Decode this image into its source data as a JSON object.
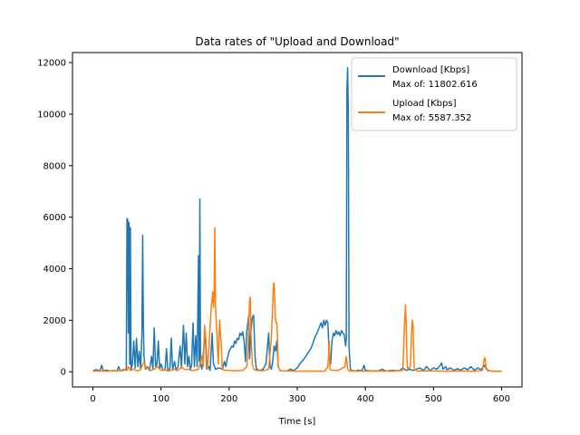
{
  "chart_data": {
    "type": "line",
    "title": "Data rates of \"Upload and Download\"",
    "xlabel": "Time [s]",
    "ylabel": "",
    "xlim": [
      -30,
      630
    ],
    "ylim": [
      -590,
      12390
    ],
    "xticks": [
      0,
      100,
      200,
      300,
      400,
      500,
      600
    ],
    "yticks": [
      0,
      2000,
      4000,
      6000,
      8000,
      10000,
      12000
    ],
    "legend_position": "top-right",
    "grid": false,
    "series": [
      {
        "name": "Download [Kbps]",
        "max_label": "Max of: 11802.616",
        "color": "#1f77b4",
        "points": [
          [
            0,
            50
          ],
          [
            5,
            80
          ],
          [
            10,
            30
          ],
          [
            13,
            250
          ],
          [
            15,
            40
          ],
          [
            20,
            60
          ],
          [
            25,
            30
          ],
          [
            30,
            50
          ],
          [
            35,
            30
          ],
          [
            38,
            200
          ],
          [
            40,
            40
          ],
          [
            45,
            60
          ],
          [
            49,
            100
          ],
          [
            50,
            5950
          ],
          [
            51,
            5900
          ],
          [
            52,
            1500
          ],
          [
            53,
            5800
          ],
          [
            54,
            300
          ],
          [
            55,
            5600
          ],
          [
            56,
            100
          ],
          [
            58,
            300
          ],
          [
            60,
            1200
          ],
          [
            62,
            150
          ],
          [
            64,
            1300
          ],
          [
            66,
            200
          ],
          [
            68,
            800
          ],
          [
            70,
            100
          ],
          [
            72,
            1500
          ],
          [
            73,
            5300
          ],
          [
            74,
            2000
          ],
          [
            75,
            600
          ],
          [
            77,
            100
          ],
          [
            80,
            200
          ],
          [
            83,
            50
          ],
          [
            86,
            600
          ],
          [
            88,
            100
          ],
          [
            90,
            1700
          ],
          [
            92,
            200
          ],
          [
            94,
            300
          ],
          [
            96,
            1200
          ],
          [
            98,
            100
          ],
          [
            100,
            300
          ],
          [
            103,
            50
          ],
          [
            106,
            100
          ],
          [
            108,
            900
          ],
          [
            110,
            50
          ],
          [
            113,
            100
          ],
          [
            115,
            1300
          ],
          [
            117,
            100
          ],
          [
            120,
            400
          ],
          [
            122,
            50
          ],
          [
            125,
            200
          ],
          [
            128,
            1000
          ],
          [
            130,
            150
          ],
          [
            133,
            1800
          ],
          [
            135,
            300
          ],
          [
            137,
            1500
          ],
          [
            139,
            200
          ],
          [
            141,
            600
          ],
          [
            143,
            50
          ],
          [
            145,
            300
          ],
          [
            147,
            1900
          ],
          [
            149,
            200
          ],
          [
            151,
            1400
          ],
          [
            153,
            200
          ],
          [
            155,
            4500
          ],
          [
            156,
            400
          ],
          [
            157,
            6700
          ],
          [
            158,
            300
          ],
          [
            160,
            100
          ],
          [
            163,
            1000
          ],
          [
            165,
            1500
          ],
          [
            167,
            100
          ],
          [
            170,
            200
          ],
          [
            172,
            50
          ],
          [
            175,
            1500
          ],
          [
            177,
            300
          ],
          [
            180,
            100
          ],
          [
            185,
            150
          ],
          [
            190,
            100
          ],
          [
            193,
            400
          ],
          [
            195,
            200
          ],
          [
            198,
            600
          ],
          [
            200,
            800
          ],
          [
            202,
            900
          ],
          [
            204,
            1000
          ],
          [
            206,
            950
          ],
          [
            208,
            1200
          ],
          [
            210,
            1100
          ],
          [
            212,
            1300
          ],
          [
            214,
            1250
          ],
          [
            216,
            1500
          ],
          [
            218,
            1400
          ],
          [
            220,
            1550
          ],
          [
            222,
            1200
          ],
          [
            224,
            400
          ],
          [
            226,
            1600
          ],
          [
            228,
            2000
          ],
          [
            229,
            2200
          ],
          [
            230,
            500
          ],
          [
            232,
            1600
          ],
          [
            234,
            2100
          ],
          [
            236,
            2200
          ],
          [
            238,
            600
          ],
          [
            240,
            100
          ],
          [
            245,
            50
          ],
          [
            250,
            100
          ],
          [
            254,
            300
          ],
          [
            256,
            900
          ],
          [
            258,
            1500
          ],
          [
            260,
            200
          ],
          [
            262,
            100
          ],
          [
            264,
            400
          ],
          [
            266,
            1000
          ],
          [
            268,
            800
          ],
          [
            270,
            1200
          ],
          [
            272,
            200
          ],
          [
            275,
            50
          ],
          [
            280,
            30
          ],
          [
            285,
            30
          ],
          [
            290,
            100
          ],
          [
            295,
            50
          ],
          [
            300,
            150
          ],
          [
            305,
            350
          ],
          [
            310,
            500
          ],
          [
            315,
            700
          ],
          [
            320,
            900
          ],
          [
            323,
            1100
          ],
          [
            326,
            1350
          ],
          [
            329,
            1500
          ],
          [
            332,
            1700
          ],
          [
            335,
            1900
          ],
          [
            337,
            1700
          ],
          [
            339,
            2000
          ],
          [
            341,
            1800
          ],
          [
            343,
            2000
          ],
          [
            345,
            1900
          ],
          [
            347,
            600
          ],
          [
            349,
            300
          ],
          [
            351,
            1200
          ],
          [
            353,
            1500
          ],
          [
            355,
            1400
          ],
          [
            357,
            1600
          ],
          [
            359,
            1450
          ],
          [
            361,
            1550
          ],
          [
            363,
            1400
          ],
          [
            365,
            1600
          ],
          [
            367,
            1500
          ],
          [
            369,
            1450
          ],
          [
            371,
            1000
          ],
          [
            372,
            1300
          ],
          [
            373,
            11000
          ],
          [
            374,
            11802.616
          ],
          [
            375,
            10000
          ],
          [
            376,
            1000
          ],
          [
            378,
            100
          ],
          [
            380,
            50
          ],
          [
            385,
            30
          ],
          [
            390,
            60
          ],
          [
            395,
            40
          ],
          [
            398,
            250
          ],
          [
            400,
            50
          ],
          [
            410,
            30
          ],
          [
            420,
            40
          ],
          [
            425,
            100
          ],
          [
            430,
            30
          ],
          [
            440,
            50
          ],
          [
            450,
            40
          ],
          [
            455,
            150
          ],
          [
            460,
            50
          ],
          [
            465,
            100
          ],
          [
            470,
            50
          ],
          [
            480,
            150
          ],
          [
            485,
            50
          ],
          [
            490,
            200
          ],
          [
            495,
            50
          ],
          [
            500,
            150
          ],
          [
            505,
            100
          ],
          [
            510,
            250
          ],
          [
            512,
            350
          ],
          [
            514,
            100
          ],
          [
            518,
            200
          ],
          [
            520,
            80
          ],
          [
            525,
            150
          ],
          [
            530,
            50
          ],
          [
            535,
            120
          ],
          [
            540,
            60
          ],
          [
            545,
            150
          ],
          [
            550,
            80
          ],
          [
            555,
            200
          ],
          [
            560,
            60
          ],
          [
            565,
            150
          ],
          [
            570,
            80
          ],
          [
            575,
            250
          ],
          [
            578,
            100
          ],
          [
            580,
            40
          ],
          [
            585,
            30
          ],
          [
            590,
            20
          ],
          [
            600,
            20
          ]
        ]
      },
      {
        "name": "Upload [Kbps]",
        "max_label": "Max of: 5587.352",
        "color": "#ff7f0e",
        "points": [
          [
            0,
            20
          ],
          [
            10,
            30
          ],
          [
            20,
            20
          ],
          [
            30,
            40
          ],
          [
            40,
            30
          ],
          [
            45,
            100
          ],
          [
            50,
            50
          ],
          [
            52,
            200
          ],
          [
            55,
            50
          ],
          [
            60,
            100
          ],
          [
            65,
            30
          ],
          [
            70,
            80
          ],
          [
            75,
            400
          ],
          [
            78,
            100
          ],
          [
            80,
            150
          ],
          [
            85,
            50
          ],
          [
            90,
            100
          ],
          [
            95,
            200
          ],
          [
            100,
            50
          ],
          [
            105,
            80
          ],
          [
            110,
            30
          ],
          [
            115,
            50
          ],
          [
            120,
            100
          ],
          [
            125,
            50
          ],
          [
            130,
            200
          ],
          [
            135,
            80
          ],
          [
            140,
            100
          ],
          [
            145,
            50
          ],
          [
            150,
            60
          ],
          [
            155,
            100
          ],
          [
            160,
            600
          ],
          [
            162,
            200
          ],
          [
            164,
            1800
          ],
          [
            166,
            1200
          ],
          [
            168,
            100
          ],
          [
            170,
            700
          ],
          [
            172,
            1800
          ],
          [
            174,
            2600
          ],
          [
            176,
            3100
          ],
          [
            177,
            2500
          ],
          [
            178,
            3000
          ],
          [
            179,
            5587.352
          ],
          [
            180,
            2500
          ],
          [
            182,
            1500
          ],
          [
            184,
            300
          ],
          [
            186,
            2000
          ],
          [
            188,
            1200
          ],
          [
            190,
            100
          ],
          [
            195,
            50
          ],
          [
            200,
            50
          ],
          [
            210,
            40
          ],
          [
            220,
            50
          ],
          [
            226,
            200
          ],
          [
            228,
            1000
          ],
          [
            230,
            2800
          ],
          [
            231,
            2900
          ],
          [
            232,
            1500
          ],
          [
            234,
            300
          ],
          [
            236,
            100
          ],
          [
            240,
            50
          ],
          [
            250,
            40
          ],
          [
            258,
            100
          ],
          [
            260,
            700
          ],
          [
            262,
            1300
          ],
          [
            264,
            2600
          ],
          [
            265,
            3400
          ],
          [
            266,
            3450
          ],
          [
            267,
            2800
          ],
          [
            268,
            2000
          ],
          [
            269,
            1900
          ],
          [
            270,
            1900
          ],
          [
            271,
            1300
          ],
          [
            272,
            200
          ],
          [
            275,
            40
          ],
          [
            290,
            30
          ],
          [
            300,
            20
          ],
          [
            320,
            30
          ],
          [
            340,
            20
          ],
          [
            345,
            200
          ],
          [
            347,
            1200
          ],
          [
            348,
            100
          ],
          [
            350,
            60
          ],
          [
            360,
            50
          ],
          [
            370,
            200
          ],
          [
            372,
            600
          ],
          [
            373,
            400
          ],
          [
            374,
            100
          ],
          [
            376,
            30
          ],
          [
            400,
            20
          ],
          [
            420,
            25
          ],
          [
            440,
            20
          ],
          [
            455,
            50
          ],
          [
            457,
            1500
          ],
          [
            458,
            2100
          ],
          [
            459,
            2600
          ],
          [
            460,
            1800
          ],
          [
            461,
            600
          ],
          [
            462,
            100
          ],
          [
            466,
            200
          ],
          [
            468,
            1600
          ],
          [
            469,
            2000
          ],
          [
            470,
            1800
          ],
          [
            471,
            700
          ],
          [
            472,
            100
          ],
          [
            476,
            30
          ],
          [
            490,
            40
          ],
          [
            500,
            30
          ],
          [
            520,
            20
          ],
          [
            540,
            30
          ],
          [
            560,
            20
          ],
          [
            572,
            50
          ],
          [
            574,
            400
          ],
          [
            575,
            550
          ],
          [
            576,
            500
          ],
          [
            577,
            200
          ],
          [
            580,
            50
          ],
          [
            590,
            20
          ],
          [
            600,
            20
          ]
        ]
      }
    ]
  }
}
